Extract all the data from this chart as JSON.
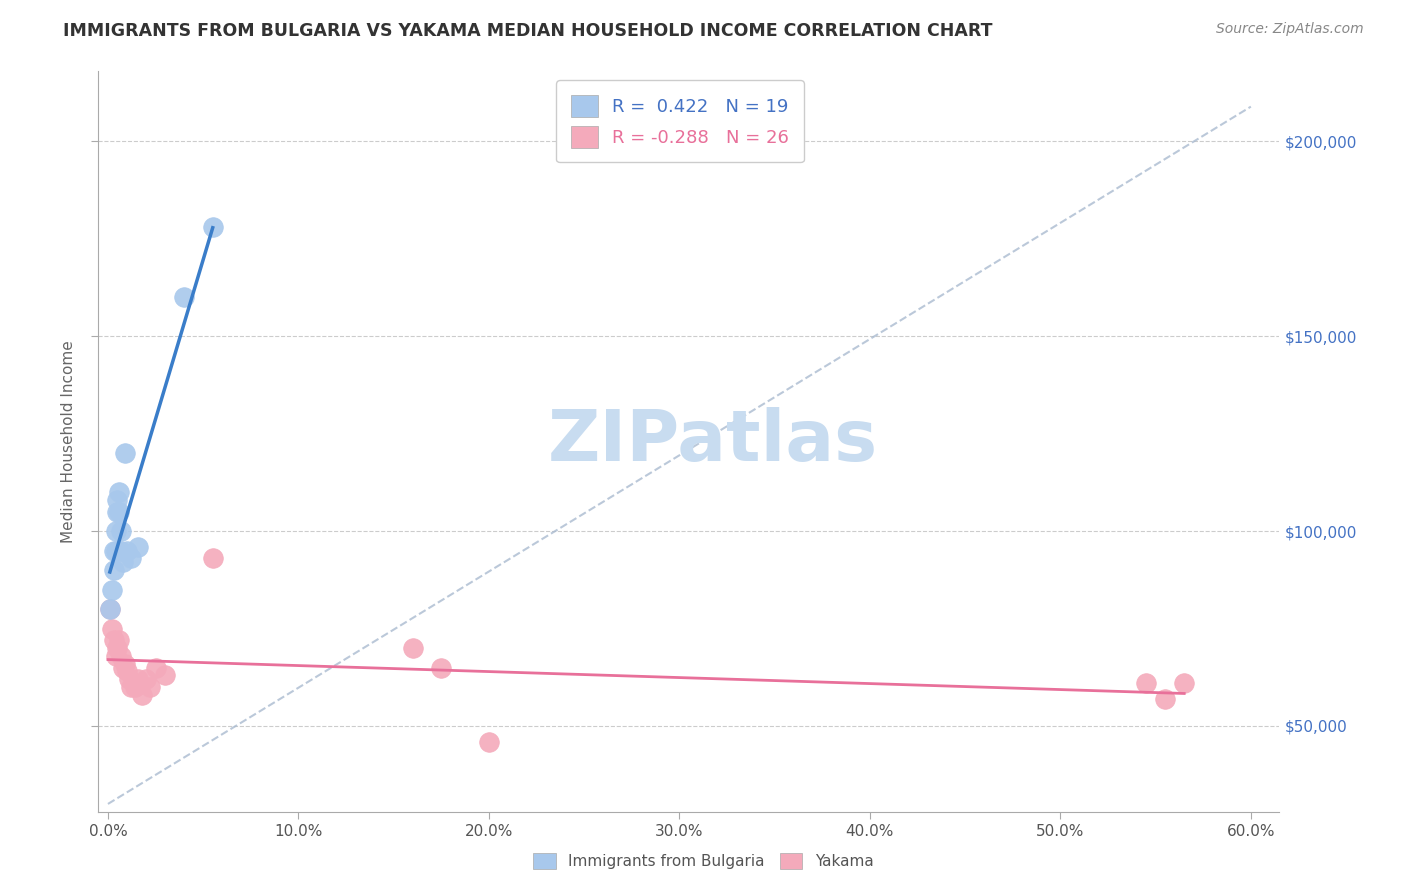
{
  "title": "IMMIGRANTS FROM BULGARIA VS YAKAMA MEDIAN HOUSEHOLD INCOME CORRELATION CHART",
  "source": "Source: ZipAtlas.com",
  "xlabel_ticks": [
    0.0,
    10.0,
    20.0,
    30.0,
    40.0,
    50.0,
    60.0
  ],
  "ylabel_ticks": [
    50000,
    100000,
    150000,
    200000
  ],
  "xlim": [
    -0.005,
    0.615
  ],
  "ylim": [
    28000,
    218000
  ],
  "ylabel": "Median Household Income",
  "blue_label": "Immigrants from Bulgaria",
  "pink_label": "Yakama",
  "blue_R": 0.422,
  "blue_N": 19,
  "pink_R": -0.288,
  "pink_N": 26,
  "blue_color": "#A8C8EC",
  "pink_color": "#F4AABB",
  "blue_line_color": "#3A7DC9",
  "pink_line_color": "#E8709A",
  "dashed_color": "#AABBD0",
  "blue_scatter_x": [
    0.001,
    0.002,
    0.003,
    0.003,
    0.004,
    0.004,
    0.005,
    0.005,
    0.006,
    0.006,
    0.007,
    0.007,
    0.008,
    0.009,
    0.01,
    0.012,
    0.016,
    0.04,
    0.055
  ],
  "blue_scatter_y": [
    80000,
    85000,
    90000,
    95000,
    95000,
    100000,
    105000,
    108000,
    105000,
    110000,
    100000,
    95000,
    92000,
    120000,
    95000,
    93000,
    96000,
    160000,
    178000
  ],
  "pink_scatter_x": [
    0.001,
    0.002,
    0.003,
    0.004,
    0.005,
    0.006,
    0.007,
    0.008,
    0.009,
    0.01,
    0.011,
    0.012,
    0.014,
    0.016,
    0.018,
    0.02,
    0.022,
    0.025,
    0.03,
    0.055,
    0.16,
    0.175,
    0.2,
    0.545,
    0.555,
    0.565
  ],
  "pink_scatter_y": [
    80000,
    75000,
    72000,
    68000,
    70000,
    72000,
    68000,
    65000,
    66000,
    64000,
    62000,
    60000,
    60000,
    62000,
    58000,
    62000,
    60000,
    65000,
    63000,
    93000,
    70000,
    65000,
    46000,
    61000,
    57000,
    61000
  ],
  "blue_line_x": [
    0.001,
    0.055
  ],
  "pink_line_x": [
    0.0,
    0.565
  ],
  "watermark_text": "ZIPatlas",
  "watermark_color": "#C8DCF0",
  "background_color": "#FFFFFF"
}
